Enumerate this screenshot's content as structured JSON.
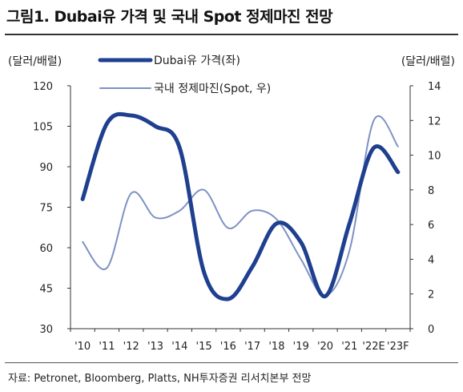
{
  "title": "그림1. Dubai유 가격 및 국내 Spot 정제마진 전망",
  "source": "자료: Petronet, Bloomberg, Platts, NH투자증권 리서치본부 전망",
  "chart_data": {
    "type": "line",
    "left_unit": "(달러/배럴)",
    "right_unit": "(달러/배럴)",
    "categories": [
      "'10",
      "'11",
      "'12",
      "'13",
      "'14",
      "'15",
      "'16",
      "'17",
      "'18",
      "'19",
      "'20",
      "'21",
      "'22E",
      "'23F"
    ],
    "y_left": {
      "min": 30,
      "max": 120,
      "ticks": [
        30,
        45,
        60,
        75,
        90,
        105,
        120
      ]
    },
    "y_right": {
      "min": 0,
      "max": 14,
      "ticks": [
        0,
        2,
        4,
        6,
        8,
        10,
        12,
        14
      ]
    },
    "grid": false,
    "legend_position": "top-center",
    "series": [
      {
        "name": "Dubai유 가격(좌)",
        "axis": "left",
        "color": "#1f3f8f",
        "values": [
          78,
          106,
          109,
          105,
          97,
          51,
          41,
          53,
          69,
          62,
          42,
          69,
          97,
          88
        ]
      },
      {
        "name": "국내 정제마진(Spot, 우)",
        "axis": "right",
        "color": "#7d92c4",
        "values": [
          5.0,
          3.5,
          7.8,
          6.4,
          6.8,
          8.0,
          5.8,
          6.8,
          6.3,
          4.0,
          1.9,
          4.5,
          12.0,
          10.5
        ]
      }
    ]
  }
}
